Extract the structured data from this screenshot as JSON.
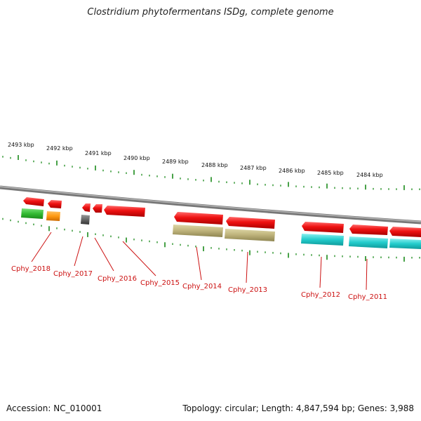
{
  "title": "Clostridium phytofermentans ISDg, complete genome",
  "accession": "Accession: NC_010001",
  "stats": "Topology: circular; Length: 4,847,594 bp; Genes: 3,988",
  "scale_labels": [
    "2493 kbp",
    "2492 kbp",
    "2491 kbp",
    "2490 kbp",
    "2489 kbp",
    "2488 kbp",
    "2487 kbp",
    "2486 kbp",
    "2485 kbp",
    "2484 kbp"
  ],
  "gene_labels": [
    "Cphy_2018",
    "Cphy_2017",
    "Cphy_2016",
    "Cphy_2015",
    "Cphy_2014",
    "Cphy_2013",
    "Cphy_2012",
    "Cphy_2011"
  ],
  "colors": {
    "backbone": "#8a8a8a",
    "tick": "#1a8a1a",
    "cds": "#ee1111",
    "label": "#cc1111",
    "green_feature": "#33bb33",
    "orange_feature": "#ff9911",
    "gray_feature": "#666666",
    "olive_feature": "#bdb27a",
    "cyan_feature": "#22cccc"
  }
}
